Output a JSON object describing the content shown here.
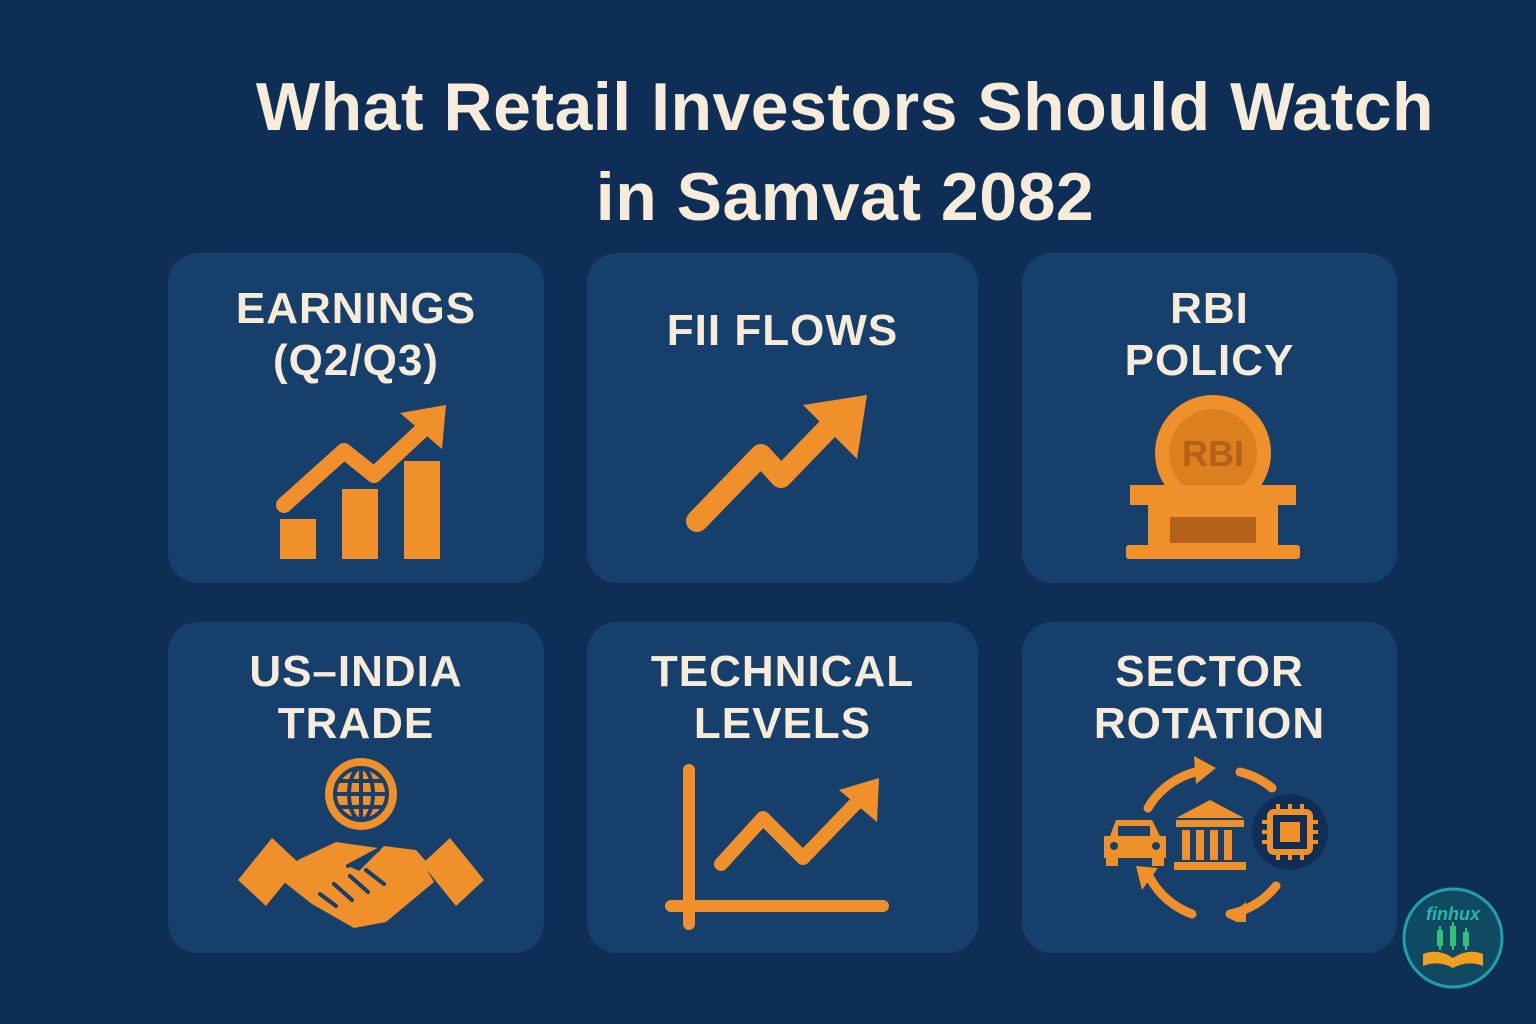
{
  "title": {
    "line1": "What Retail Investors Should Watch",
    "line2": "in Samvat 2082"
  },
  "cards": [
    {
      "label_line1": "EARNINGS",
      "label_line2": "(Q2/Q3)",
      "icon": "bar-chart-growth-icon"
    },
    {
      "label_line1": "FII FLOWS",
      "label_line2": "",
      "icon": "trending-up-arrow-icon"
    },
    {
      "label_line1": "RBI",
      "label_line2": "POLICY",
      "icon": "rbi-building-icon",
      "icon_text": "RBI"
    },
    {
      "label_line1": "US–INDIA",
      "label_line2": "TRADE",
      "icon": "handshake-globe-icon"
    },
    {
      "label_line1": "TECHNICAL",
      "label_line2": "LEVELS",
      "icon": "line-chart-axes-icon"
    },
    {
      "label_line1": "SECTOR",
      "label_line2": "ROTATION",
      "icon": "sector-rotation-icon"
    }
  ],
  "logo": {
    "text": "finhux",
    "icon": "finhux-logo-icon"
  },
  "colors": {
    "background": "#0f2e55",
    "card": "#163f6b",
    "accent": "#f0902a",
    "text": "#f6ecd9"
  }
}
